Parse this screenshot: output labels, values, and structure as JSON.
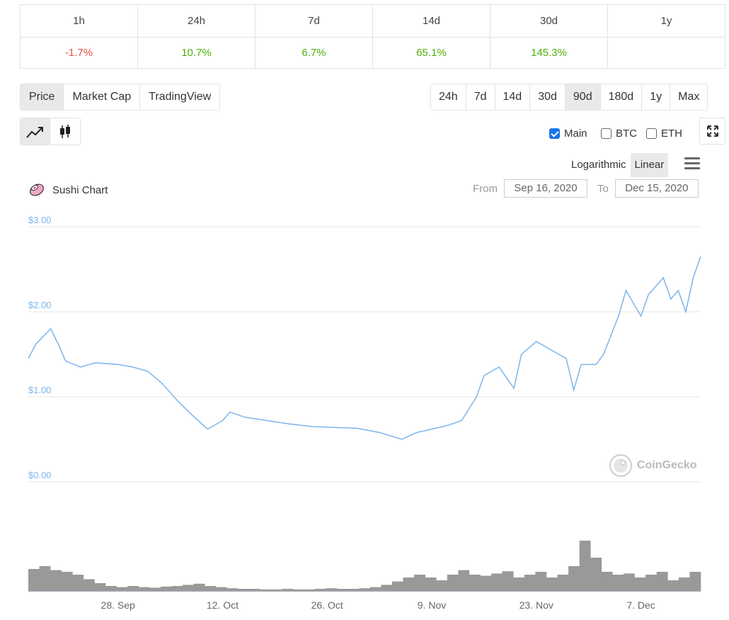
{
  "changes": {
    "headers": [
      "1h",
      "24h",
      "7d",
      "14d",
      "30d",
      "1y"
    ],
    "values": [
      "-1.7%",
      "10.7%",
      "6.7%",
      "65.1%",
      "145.3%",
      ""
    ]
  },
  "tabs_left": [
    "Price",
    "Market Cap",
    "TradingView"
  ],
  "tabs_right": [
    "24h",
    "7d",
    "14d",
    "30d",
    "90d",
    "180d",
    "1y",
    "Max"
  ],
  "active_left": "Price",
  "active_right": "90d",
  "chart_type_icons": [
    "line-chart-icon",
    "candlestick-icon"
  ],
  "legend": {
    "main": "Main",
    "btc": "BTC",
    "eth": "ETH"
  },
  "scale": {
    "log": "Logarithmic",
    "linear": "Linear"
  },
  "chart_title": "Sushi Chart",
  "range": {
    "from_label": "From",
    "from": "Sep 16, 2020",
    "to_label": "To",
    "to": "Dec 15, 2020"
  },
  "watermark": "CoinGecko",
  "colors": {
    "line": "#7cb5ec",
    "volume": "#999999",
    "negative": "#e15241",
    "positive": "#4eaf0a"
  },
  "chart_data": {
    "type": "line",
    "title": "Sushi Chart",
    "y_ticks": [
      "$3.00",
      "$2.00",
      "$1.00",
      "$0.00"
    ],
    "ylim": [
      0,
      3
    ],
    "x_ticks": [
      "28. Sep",
      "12. Oct",
      "26. Oct",
      "9. Nov",
      "23. Nov",
      "7. Dec"
    ],
    "xlim": [
      "2020-09-16",
      "2020-12-15"
    ],
    "series": [
      {
        "values": [
          {
            "x": "2020-09-16",
            "y": 1.45
          },
          {
            "x": "2020-09-17",
            "y": 1.62
          },
          {
            "x": "2020-09-19",
            "y": 1.8
          },
          {
            "x": "2020-09-20",
            "y": 1.62
          },
          {
            "x": "2020-09-21",
            "y": 1.42
          },
          {
            "x": "2020-09-23",
            "y": 1.35
          },
          {
            "x": "2020-09-25",
            "y": 1.4
          },
          {
            "x": "2020-09-28",
            "y": 1.38
          },
          {
            "x": "2020-09-30",
            "y": 1.35
          },
          {
            "x": "2020-10-02",
            "y": 1.3
          },
          {
            "x": "2020-10-04",
            "y": 1.15
          },
          {
            "x": "2020-10-06",
            "y": 0.95
          },
          {
            "x": "2020-10-08",
            "y": 0.78
          },
          {
            "x": "2020-10-10",
            "y": 0.62
          },
          {
            "x": "2020-10-12",
            "y": 0.72
          },
          {
            "x": "2020-10-13",
            "y": 0.82
          },
          {
            "x": "2020-10-15",
            "y": 0.76
          },
          {
            "x": "2020-10-18",
            "y": 0.72
          },
          {
            "x": "2020-10-21",
            "y": 0.68
          },
          {
            "x": "2020-10-24",
            "y": 0.65
          },
          {
            "x": "2020-10-27",
            "y": 0.64
          },
          {
            "x": "2020-10-30",
            "y": 0.63
          },
          {
            "x": "2020-11-02",
            "y": 0.58
          },
          {
            "x": "2020-11-05",
            "y": 0.5
          },
          {
            "x": "2020-11-07",
            "y": 0.58
          },
          {
            "x": "2020-11-09",
            "y": 0.62
          },
          {
            "x": "2020-11-11",
            "y": 0.66
          },
          {
            "x": "2020-11-13",
            "y": 0.72
          },
          {
            "x": "2020-11-15",
            "y": 1.0
          },
          {
            "x": "2020-11-16",
            "y": 1.25
          },
          {
            "x": "2020-11-18",
            "y": 1.35
          },
          {
            "x": "2020-11-20",
            "y": 1.1
          },
          {
            "x": "2020-11-21",
            "y": 1.5
          },
          {
            "x": "2020-11-23",
            "y": 1.65
          },
          {
            "x": "2020-11-25",
            "y": 1.55
          },
          {
            "x": "2020-11-27",
            "y": 1.45
          },
          {
            "x": "2020-11-28",
            "y": 1.08
          },
          {
            "x": "2020-11-29",
            "y": 1.38
          },
          {
            "x": "2020-12-01",
            "y": 1.38
          },
          {
            "x": "2020-12-02",
            "y": 1.5
          },
          {
            "x": "2020-12-04",
            "y": 1.95
          },
          {
            "x": "2020-12-05",
            "y": 2.25
          },
          {
            "x": "2020-12-07",
            "y": 1.95
          },
          {
            "x": "2020-12-08",
            "y": 2.2
          },
          {
            "x": "2020-12-10",
            "y": 2.4
          },
          {
            "x": "2020-12-11",
            "y": 2.15
          },
          {
            "x": "2020-12-12",
            "y": 2.25
          },
          {
            "x": "2020-12-13",
            "y": 2.0
          },
          {
            "x": "2020-12-14",
            "y": 2.4
          },
          {
            "x": "2020-12-15",
            "y": 2.65
          }
        ]
      }
    ],
    "volume_relative": [
      0.4,
      0.45,
      0.38,
      0.35,
      0.3,
      0.22,
      0.15,
      0.1,
      0.08,
      0.1,
      0.08,
      0.07,
      0.09,
      0.1,
      0.12,
      0.14,
      0.1,
      0.08,
      0.06,
      0.05,
      0.05,
      0.04,
      0.04,
      0.05,
      0.04,
      0.04,
      0.05,
      0.06,
      0.05,
      0.05,
      0.06,
      0.08,
      0.12,
      0.18,
      0.25,
      0.3,
      0.25,
      0.2,
      0.3,
      0.38,
      0.3,
      0.28,
      0.32,
      0.36,
      0.25,
      0.3,
      0.35,
      0.25,
      0.3,
      0.45,
      0.9,
      0.6,
      0.35,
      0.3,
      0.32,
      0.25,
      0.3,
      0.35,
      0.2,
      0.25,
      0.35
    ]
  }
}
